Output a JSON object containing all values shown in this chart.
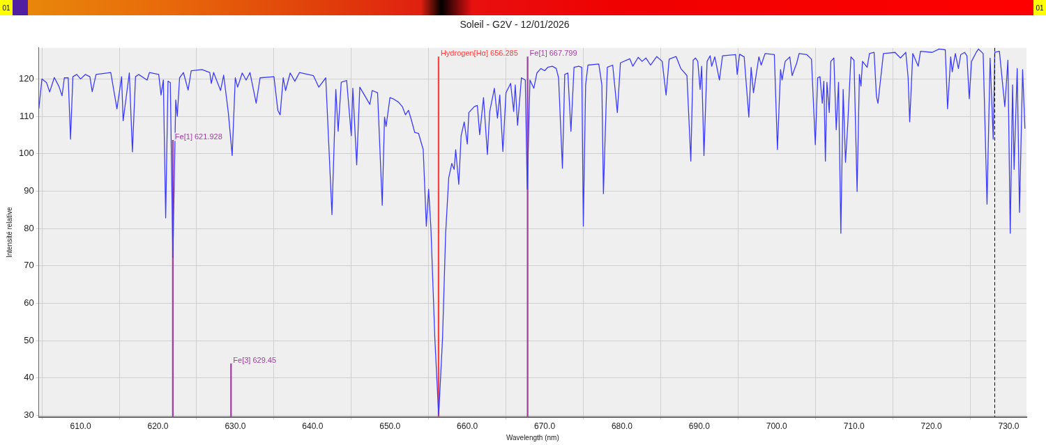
{
  "chart_data": {
    "type": "line",
    "title": "Soleil - G2V - 12/01/2026",
    "xlabel": "Wavelength (nm)",
    "ylabel": "Intensité relative",
    "xlim": [
      604.6,
      732.3
    ],
    "ylim": [
      29.6,
      128.3
    ],
    "xticks": [
      {
        "value": 610,
        "label": "610.0"
      },
      {
        "value": 620,
        "label": "620.0"
      },
      {
        "value": 630,
        "label": "630.0"
      },
      {
        "value": 640,
        "label": "640.0"
      },
      {
        "value": 650,
        "label": "650.0"
      },
      {
        "value": 660,
        "label": "660.0"
      },
      {
        "value": 670,
        "label": "670.0"
      },
      {
        "value": 680,
        "label": "680.0"
      },
      {
        "value": 690,
        "label": "690.0"
      },
      {
        "value": 700,
        "label": "700.0"
      },
      {
        "value": 710,
        "label": "710.0"
      },
      {
        "value": 720,
        "label": "720.0"
      },
      {
        "value": 730,
        "label": "730.0"
      }
    ],
    "yticks": [
      30,
      40,
      50,
      60,
      70,
      80,
      90,
      100,
      110,
      120
    ],
    "grid": true,
    "legend": false,
    "marker": "none",
    "line_style": "solid",
    "series": [
      {
        "color": "#3a3aff",
        "x": [
          604.6,
          605.0,
          605.6,
          606.0,
          606.6,
          607.2,
          607.6,
          607.9,
          608.4,
          608.7,
          609.0,
          609.5,
          610.0,
          610.6,
          611.2,
          611.5,
          612.0,
          613.9,
          614.7,
          615.3,
          615.5,
          616.3,
          616.7,
          617.1,
          617.5,
          618.6,
          618.9,
          620.1,
          620.4,
          620.7,
          621.0,
          621.3,
          621.6,
          621.93,
          622.3,
          622.5,
          622.8,
          623.3,
          623.9,
          624.3,
          625.7,
          626.7,
          626.9,
          627.2,
          628.1,
          628.5,
          629.1,
          629.6,
          630.0,
          630.3,
          630.9,
          631.4,
          631.9,
          632.7,
          633.0,
          633.2,
          635.0,
          635.5,
          635.8,
          636.2,
          636.5,
          637.1,
          637.7,
          638.3,
          640.1,
          640.8,
          641.7,
          642.5,
          643.0,
          643.3,
          643.7,
          644.4,
          645.0,
          645.2,
          645.7,
          646.1,
          647.4,
          647.7,
          648.4,
          649.0,
          649.3,
          649.5,
          650.0,
          650.4,
          651.1,
          651.6,
          652.0,
          652.4,
          652.8,
          653.2,
          653.7,
          654.3,
          654.7,
          655.0,
          655.3,
          655.8,
          656.3,
          656.8,
          657.2,
          657.6,
          658.0,
          658.3,
          658.5,
          658.9,
          659.2,
          659.6,
          660.0,
          660.2,
          660.9,
          661.3,
          661.6,
          662.1,
          662.6,
          662.9,
          663.5,
          663.9,
          664.2,
          664.6,
          665.0,
          665.6,
          666.0,
          666.2,
          666.5,
          667.0,
          667.5,
          667.75,
          668.1,
          668.6,
          669.0,
          669.5,
          670.0,
          670.4,
          671.0,
          671.5,
          671.8,
          672.3,
          672.6,
          673.0,
          673.4,
          673.8,
          674.4,
          674.8,
          675.0,
          675.3,
          675.6,
          677.0,
          677.4,
          677.6,
          678.1,
          678.8,
          679.4,
          679.8,
          681.0,
          681.4,
          682.1,
          682.6,
          683.1,
          683.7,
          684.5,
          685.2,
          685.7,
          686.1,
          687.0,
          687.6,
          688.4,
          688.9,
          689.2,
          689.5,
          689.8,
          690.1,
          690.3,
          690.6,
          691.0,
          691.4,
          691.6,
          692.0,
          692.6,
          693.0,
          694.7,
          694.9,
          695.2,
          695.8,
          696.4,
          696.7,
          697.0,
          697.7,
          698.0,
          698.5,
          699.7,
          700.1,
          700.5,
          700.7,
          701.1,
          701.7,
          702.0,
          702.6,
          702.9,
          703.9,
          704.5,
          705.0,
          705.3,
          705.6,
          705.9,
          706.1,
          706.3,
          706.5,
          706.8,
          707.0,
          707.4,
          707.7,
          708.0,
          708.3,
          708.6,
          708.9,
          709.2,
          709.6,
          710.0,
          710.4,
          710.7,
          710.9,
          711.1,
          711.7,
          712.0,
          712.6,
          712.9,
          713.1,
          713.8,
          715.3,
          716.0,
          716.7,
          717.0,
          717.2,
          717.6,
          718.3,
          718.6,
          720.1,
          721.0,
          721.8,
          722.1,
          722.5,
          722.7,
          723.1,
          723.5,
          723.8,
          724.3,
          724.6,
          724.9,
          725.2,
          725.8,
          726.1,
          726.7,
          727.2,
          727.6,
          728.0,
          728.2,
          728.8,
          729.5,
          729.9,
          730.2,
          730.5,
          730.7,
          731.1,
          731.4,
          731.8,
          732.1
        ],
        "values": [
          112,
          120,
          119,
          116.5,
          120.4,
          118,
          115.5,
          120.3,
          120.3,
          103.9,
          120.6,
          121.2,
          120,
          121.2,
          120.6,
          116.6,
          121.2,
          121.7,
          112,
          120.6,
          108.8,
          121.6,
          100.5,
          120.6,
          121.2,
          119.7,
          121.7,
          121.2,
          115.7,
          119.7,
          82.8,
          119.4,
          119,
          72.3,
          114.4,
          110,
          120.3,
          121.7,
          117,
          122.2,
          122.5,
          121.7,
          118.8,
          121.7,
          116.9,
          121,
          111,
          99.5,
          120.3,
          117.8,
          121.6,
          119.7,
          121.7,
          113.5,
          117.5,
          120.3,
          120.6,
          111.6,
          110.4,
          120.3,
          116.9,
          121.6,
          119.4,
          121.7,
          120.9,
          117.8,
          120.3,
          83.7,
          117.2,
          106,
          119.1,
          119.6,
          104.8,
          117.5,
          97,
          117.8,
          113.2,
          116.9,
          116.3,
          86.2,
          109.8,
          107.3,
          115,
          114.7,
          113.8,
          112.6,
          110.4,
          111.6,
          108.8,
          105.7,
          105.4,
          101.1,
          80.6,
          90.5,
          79.9,
          50.7,
          30,
          50.7,
          78.7,
          93.6,
          97.4,
          95.8,
          101.1,
          91.8,
          104.8,
          108.5,
          102.6,
          111,
          112.6,
          112.9,
          105.1,
          115,
          99.8,
          111.3,
          117.5,
          109.5,
          115.7,
          100.6,
          116.3,
          118.8,
          111.3,
          118.4,
          107.6,
          120.3,
          119.7,
          90.5,
          119.7,
          117.5,
          121.6,
          122.8,
          122.2,
          123.1,
          123.4,
          122.8,
          120.3,
          96.1,
          121.2,
          121.6,
          106,
          123.1,
          123.4,
          123.1,
          80.6,
          118.4,
          123.7,
          124,
          118.4,
          89.3,
          123.1,
          123.7,
          111,
          124.3,
          125.4,
          123.4,
          125.8,
          124.7,
          125.6,
          123.7,
          126,
          124.7,
          115.7,
          125.3,
          126,
          122.8,
          120.9,
          98,
          125,
          125.6,
          124.7,
          117.2,
          123.4,
          99.5,
          124.7,
          126.2,
          123.4,
          125.9,
          119.7,
          126.2,
          126.5,
          121.2,
          126.6,
          125.9,
          109.8,
          123.1,
          116.3,
          125.9,
          123.7,
          126.8,
          126.5,
          101.1,
          122.5,
          119.7,
          124.7,
          125.9,
          120.9,
          124.3,
          126.8,
          126.5,
          125.3,
          102.4,
          120.3,
          120.6,
          113.5,
          119.4,
          98,
          119.1,
          111,
          124.7,
          125.6,
          106.4,
          119.1,
          78.7,
          117.2,
          97.7,
          108.2,
          125.9,
          125,
          89.9,
          121.2,
          118.1,
          124.7,
          123.1,
          126.8,
          127.1,
          115.3,
          113.5,
          126.8,
          127.1,
          125.6,
          127.1,
          120.3,
          108.5,
          126.8,
          123.4,
          127.4,
          127.1,
          128,
          127.8,
          112,
          125.9,
          121.9,
          126.8,
          122.8,
          126.5,
          127.1,
          126.2,
          114.7,
          124.7,
          127.1,
          128,
          126.8,
          86.5,
          125.6,
          103.9,
          127.1,
          127.4,
          112.6,
          125,
          78.7,
          118.4,
          95.8,
          122.8,
          84.3,
          122.5,
          106.7
        ]
      },
      {
        "type": "bar",
        "colors": [
          "#a040a0",
          "#a040a0",
          "#ff4040",
          "#a040a0"
        ],
        "x": [
          621.928,
          629.45,
          656.285,
          667.799
        ],
        "values": [
          103.6,
          43.8,
          125.9,
          125.9
        ]
      }
    ],
    "ref_lines": [
      {
        "axis": "x",
        "value": 728.2,
        "color": "#000000",
        "line_style": "dashed"
      }
    ],
    "annotations": [
      "01",
      "01",
      {
        "text": "Fe[1] 621.928",
        "x": 621.928,
        "y": 103.6
      },
      {
        "text": "Fe[3] 629.45",
        "x": 629.45,
        "y": 43.8
      },
      {
        "text": "Hydrogen[Hα] 656.285",
        "x": 656.285,
        "y": 125.9
      },
      {
        "text": "Fe[1] 667.799",
        "x": 667.799,
        "y": 125.9
      }
    ]
  }
}
